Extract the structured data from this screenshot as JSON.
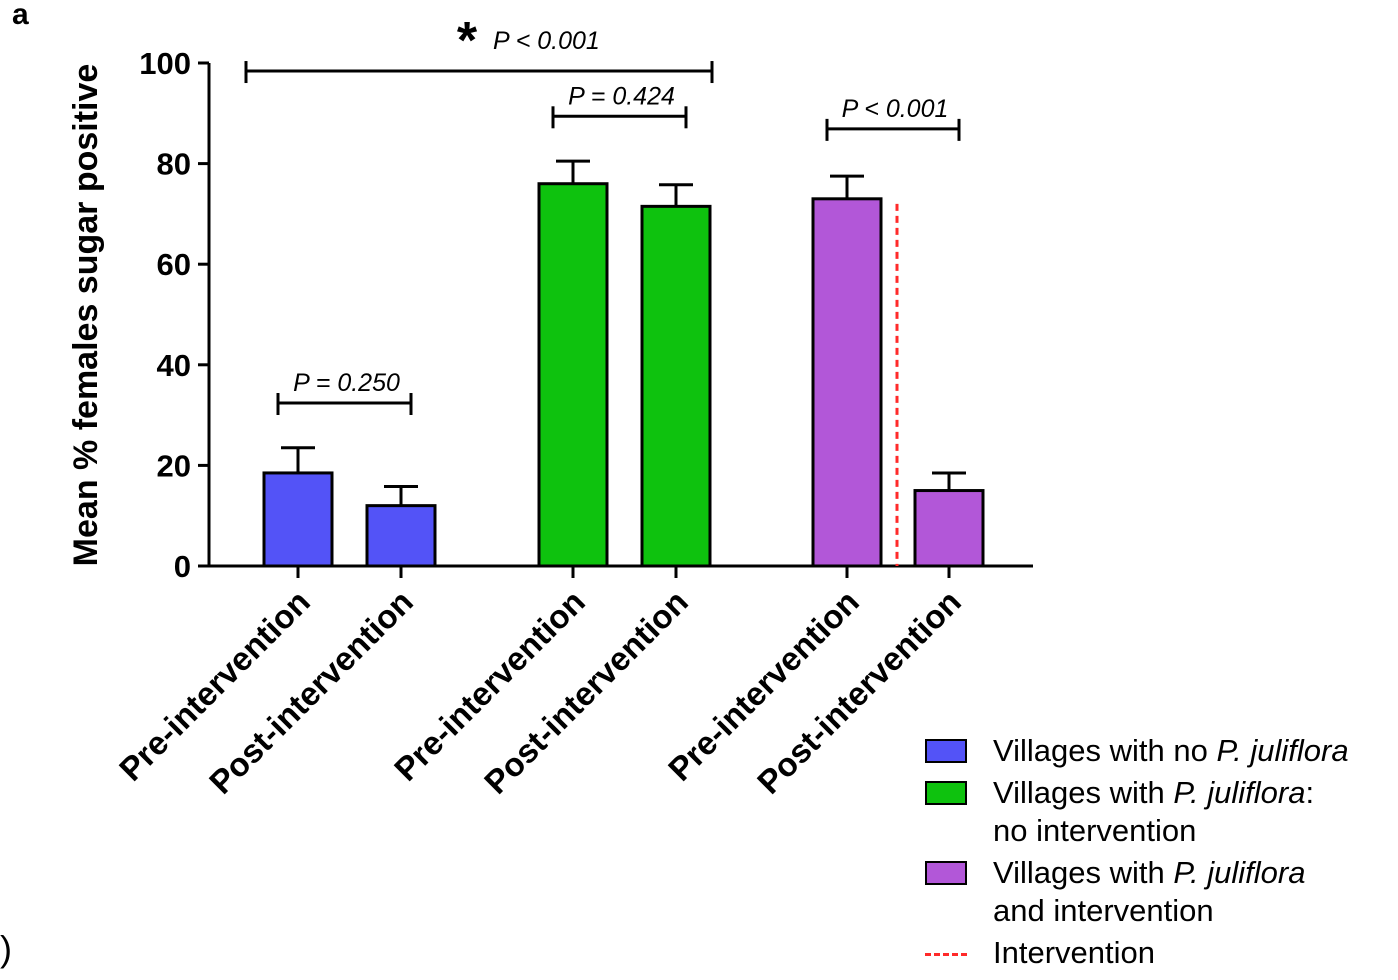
{
  "panel_label": "a",
  "stray_char": ")",
  "colors": {
    "blue": "#5353f7",
    "green": "#0ec20e",
    "purple": "#b257d8",
    "intervention_line": "#ff2a2a",
    "axis": "#000000"
  },
  "legend": {
    "blue": {
      "prefix": "Villages with no ",
      "italic": "P. juliflora",
      "suffix": ""
    },
    "green": {
      "prefix": "Villages with ",
      "italic": "P. juliflora",
      "suffix": ":",
      "line2": "no intervention"
    },
    "purple": {
      "prefix": "Villages with ",
      "italic": "P. juliflora",
      "suffix": "",
      "line2": "and intervention"
    },
    "intervention": "Intervention"
  },
  "chart_data": {
    "type": "bar",
    "ylabel": "Mean % females sugar positive",
    "ylim": [
      0,
      100
    ],
    "yticks": [
      0,
      20,
      40,
      60,
      80,
      100
    ],
    "categories": [
      "Pre-intervention",
      "Post-intervention",
      "Pre-intervention",
      "Post-intervention",
      "Pre-intervention",
      "Post-intervention"
    ],
    "values": [
      18.5,
      12,
      76,
      71.5,
      73,
      15
    ],
    "errors": [
      5,
      3.8,
      4.5,
      4.3,
      4.5,
      3.5
    ],
    "bar_colors": [
      "blue",
      "blue",
      "green",
      "green",
      "purple",
      "purple"
    ],
    "annotations": [
      {
        "text": "P = 0.250",
        "from": 0,
        "to": 1,
        "y": 33
      },
      {
        "text": "P = 0.424",
        "from": 2,
        "to": 3,
        "y": 90
      },
      {
        "text": "P < 0.001",
        "from": 4,
        "to": 5,
        "y": 87.5
      },
      {
        "text": "P < 0.001",
        "star": "*",
        "from": 0,
        "to": 3,
        "y": 99
      }
    ],
    "intervention_line_between": [
      4,
      5
    ]
  }
}
